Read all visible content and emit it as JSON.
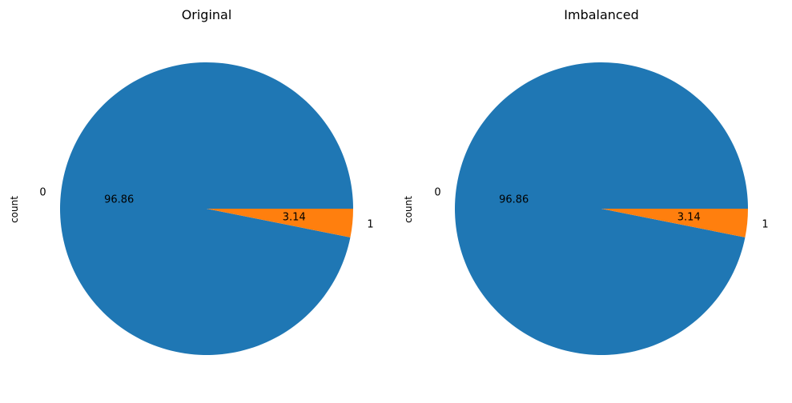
{
  "chart_data": [
    {
      "type": "pie",
      "title": "Original",
      "ylabel": "count",
      "labels": [
        "0",
        "1"
      ],
      "values": [
        96.86,
        3.14
      ],
      "value_labels": [
        "96.86",
        "3.14"
      ],
      "colors": [
        "#1f77b4",
        "#ff7f0e"
      ],
      "start_angle_deg": 0,
      "direction": "counterclockwise"
    },
    {
      "type": "pie",
      "title": "Imbalanced",
      "ylabel": "count",
      "labels": [
        "0",
        "1"
      ],
      "values": [
        96.86,
        3.14
      ],
      "value_labels": [
        "96.86",
        "3.14"
      ],
      "colors": [
        "#1f77b4",
        "#ff7f0e"
      ],
      "start_angle_deg": 0,
      "direction": "counterclockwise"
    }
  ]
}
